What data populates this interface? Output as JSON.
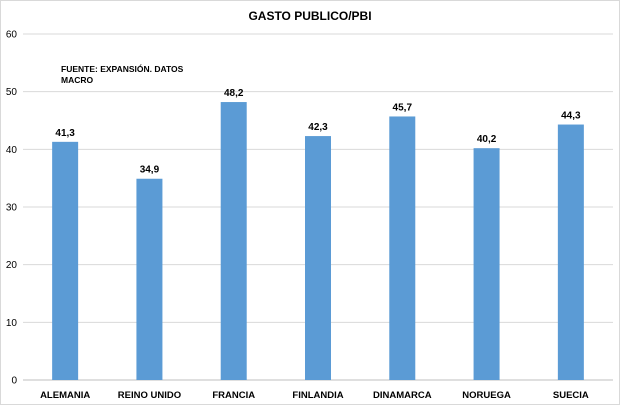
{
  "chart_data": {
    "type": "bar",
    "title": "GASTO PUBLICO/PBI",
    "annotation": [
      "FUENTE: EXPANSIÓN. DATOS",
      "MACRO"
    ],
    "categories": [
      "ALEMANIA",
      "REINO UNIDO",
      "FRANCIA",
      "FINLANDIA",
      "DINAMARCA",
      "NORUEGA",
      "SUECIA"
    ],
    "values": [
      41.3,
      34.9,
      48.2,
      42.3,
      45.7,
      40.2,
      44.3
    ],
    "value_labels": [
      "41,3",
      "34,9",
      "48,2",
      "42,3",
      "45,7",
      "40,2",
      "44,3"
    ],
    "yticks": [
      "0",
      "10",
      "20",
      "30",
      "40",
      "50",
      "60"
    ],
    "ylim": [
      0,
      60
    ],
    "grid": true,
    "legend": "none",
    "bar_color": "#5b9bd5",
    "grid_color": "#d9d9d9"
  }
}
